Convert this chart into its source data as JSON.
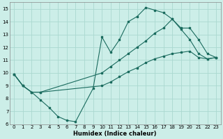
{
  "xlabel": "Humidex (Indice chaleur)",
  "bg_color": "#cceee8",
  "grid_color": "#aad8d0",
  "line_color": "#1a6b5e",
  "xlim": [
    -0.5,
    23.5
  ],
  "ylim": [
    6,
    15.5
  ],
  "xticks": [
    0,
    1,
    2,
    3,
    4,
    5,
    6,
    7,
    8,
    9,
    10,
    11,
    12,
    13,
    14,
    15,
    16,
    17,
    18,
    19,
    20,
    21,
    22,
    23
  ],
  "yticks": [
    6,
    7,
    8,
    9,
    10,
    11,
    12,
    13,
    14,
    15
  ],
  "line1_x": [
    0,
    1,
    2,
    3,
    4,
    5,
    6,
    7,
    9,
    10,
    11,
    12,
    13,
    14,
    15,
    16,
    17,
    18,
    19,
    20,
    21,
    22,
    23
  ],
  "line1_y": [
    9.9,
    9.0,
    8.5,
    7.9,
    7.3,
    6.6,
    6.3,
    6.2,
    8.8,
    12.8,
    11.6,
    12.6,
    14.0,
    14.4,
    15.1,
    14.9,
    14.7,
    14.2,
    13.4,
    12.6,
    11.5,
    11.1,
    11.2
  ],
  "line2_x": [
    0,
    1,
    2,
    3,
    10,
    11,
    12,
    13,
    14,
    15,
    16,
    17,
    18,
    19,
    20,
    21,
    22,
    23
  ],
  "line2_y": [
    9.9,
    9.0,
    8.5,
    8.5,
    10.0,
    10.5,
    11.0,
    11.5,
    12.0,
    12.5,
    13.1,
    13.5,
    14.2,
    13.5,
    13.5,
    12.6,
    11.5,
    11.2
  ],
  "line3_x": [
    0,
    1,
    2,
    3,
    10,
    11,
    12,
    13,
    14,
    15,
    16,
    17,
    18,
    19,
    20,
    21,
    22,
    23
  ],
  "line3_y": [
    9.9,
    9.0,
    8.5,
    8.5,
    9.0,
    9.3,
    9.7,
    10.1,
    10.4,
    10.8,
    11.1,
    11.3,
    11.5,
    11.6,
    11.7,
    11.2,
    11.1,
    11.2
  ]
}
